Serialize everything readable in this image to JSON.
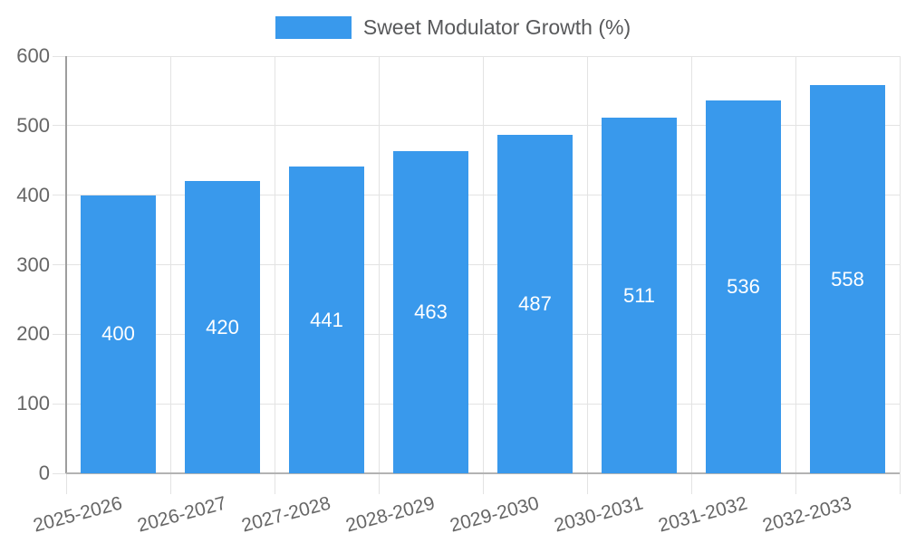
{
  "legend": {
    "label": "Sweet Modulator Growth (%)"
  },
  "colors": {
    "bar": "#3999ec",
    "grid": "#e3e3e3",
    "axis_left": "#9e9e9e",
    "axis_bottom": "#b3b3b3",
    "axis_text": "#666666",
    "legend_text": "#58595b",
    "value_label_text": "#ffffff",
    "background": "#ffffff"
  },
  "chart_data": {
    "type": "bar",
    "title": "Sweet Modulator Growth (%)",
    "series_name": "Sweet Modulator Growth (%)",
    "categories": [
      "2025-2026",
      "2026-2027",
      "2027-2028",
      "2028-2029",
      "2029-2030",
      "2030-2031",
      "2031-2032",
      "2032-2033"
    ],
    "values": [
      400,
      420,
      441,
      463,
      487,
      511,
      536,
      558
    ],
    "value_labels_position": "inside-center",
    "xlabel": "",
    "ylabel": "",
    "ylim": [
      0,
      600
    ],
    "yticks": [
      0,
      100,
      200,
      300,
      400,
      500,
      600
    ],
    "grid": "on",
    "legend_position": "top-center",
    "x_tick_label_rotation_deg": -15
  }
}
